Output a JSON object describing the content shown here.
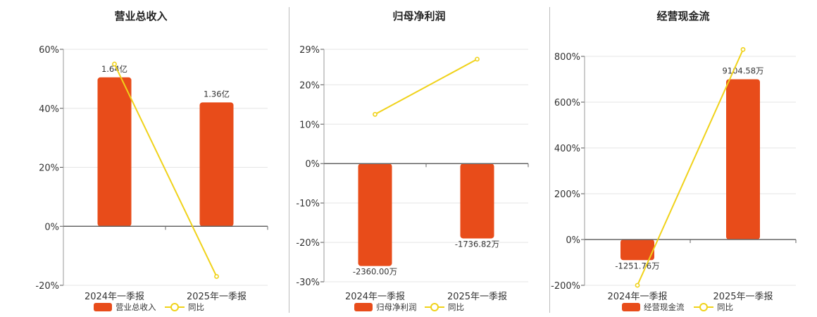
{
  "colors": {
    "bar": "#e84c1a",
    "line": "#f0d21a",
    "grid": "#e5e5e5",
    "axis": "#555555"
  },
  "legend": {
    "line_label": "同比"
  },
  "chart_data": [
    {
      "type": "bar",
      "title": "营业总收入",
      "categories": [
        "2024年一季报",
        "2025年一季报"
      ],
      "series": [
        {
          "name": "营业总收入",
          "type": "bar",
          "data_labels": [
            "1.64亿",
            "1.36亿"
          ]
        },
        {
          "name": "同比",
          "type": "line",
          "values": [
            55,
            -17
          ]
        }
      ],
      "ylim": [
        -20,
        60
      ],
      "yticks": [
        "60%",
        "40%",
        "20%",
        "0%",
        "-20%"
      ],
      "bar_level_pct": [
        50.5,
        42
      ]
    },
    {
      "type": "bar",
      "title": "归母净利润",
      "categories": [
        "2024年一季报",
        "2025年一季报"
      ],
      "series": [
        {
          "name": "归母净利润",
          "type": "bar",
          "data_labels": [
            "-2360.00万",
            "-1736.82万"
          ]
        },
        {
          "name": "同比",
          "type": "line",
          "values": [
            12.5,
            26.5
          ]
        }
      ],
      "ylim": [
        -30,
        29
      ],
      "yticks": [
        "29%",
        "20%",
        "10%",
        "0%",
        "-10%",
        "-20%",
        "-30%"
      ],
      "ytick_values": [
        29,
        20,
        10,
        0,
        -10,
        -20,
        -30
      ],
      "bar_level_pct": [
        -26,
        -19
      ]
    },
    {
      "type": "bar",
      "title": "经营现金流",
      "categories": [
        "2024年一季报",
        "2025年一季报"
      ],
      "series": [
        {
          "name": "经营现金流",
          "type": "bar",
          "data_labels": [
            "-1251.76万",
            "9104.58万"
          ]
        },
        {
          "name": "同比",
          "type": "line",
          "values": [
            -200,
            830
          ]
        }
      ],
      "ylim": [
        -200,
        830
      ],
      "yticks": [
        "800%",
        "600%",
        "400%",
        "200%",
        "0%",
        "-200%"
      ],
      "ytick_values": [
        800,
        600,
        400,
        200,
        0,
        -200
      ],
      "bar_level_pct": [
        -90,
        700
      ]
    }
  ]
}
